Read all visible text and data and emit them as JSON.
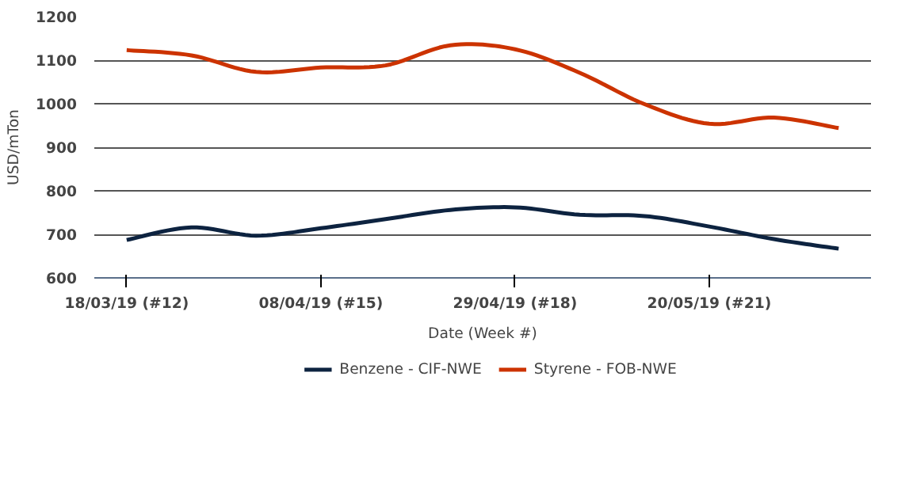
{
  "chart_data": {
    "type": "line",
    "xlabel": "Date (Week #)",
    "ylabel": "USD/mTon",
    "categories": [
      "18/03/19 (#12)",
      null,
      null,
      "08/04/19 (#15)",
      null,
      null,
      "29/04/19 (#18)",
      null,
      null,
      "20/05/19 (#21)",
      null,
      null
    ],
    "series": [
      {
        "name": "Benzene - CIF-NWE",
        "color": "#0d2340",
        "values": [
          687,
          716,
          697,
          714,
          735,
          756,
          762,
          745,
          742,
          718,
          689,
          667
        ]
      },
      {
        "name": "Styrene - FOB-NWE",
        "color": "#cc3300",
        "values": [
          1123,
          1111,
          1073,
          1083,
          1088,
          1134,
          1125,
          1071,
          999,
          954,
          968,
          944
        ]
      }
    ],
    "ylim": [
      600,
      1200
    ],
    "yticks": [
      600,
      700,
      800,
      900,
      1000,
      1100,
      1200
    ],
    "grid": "y",
    "legend": "bottom",
    "marker": "none",
    "line_style": "solid"
  }
}
